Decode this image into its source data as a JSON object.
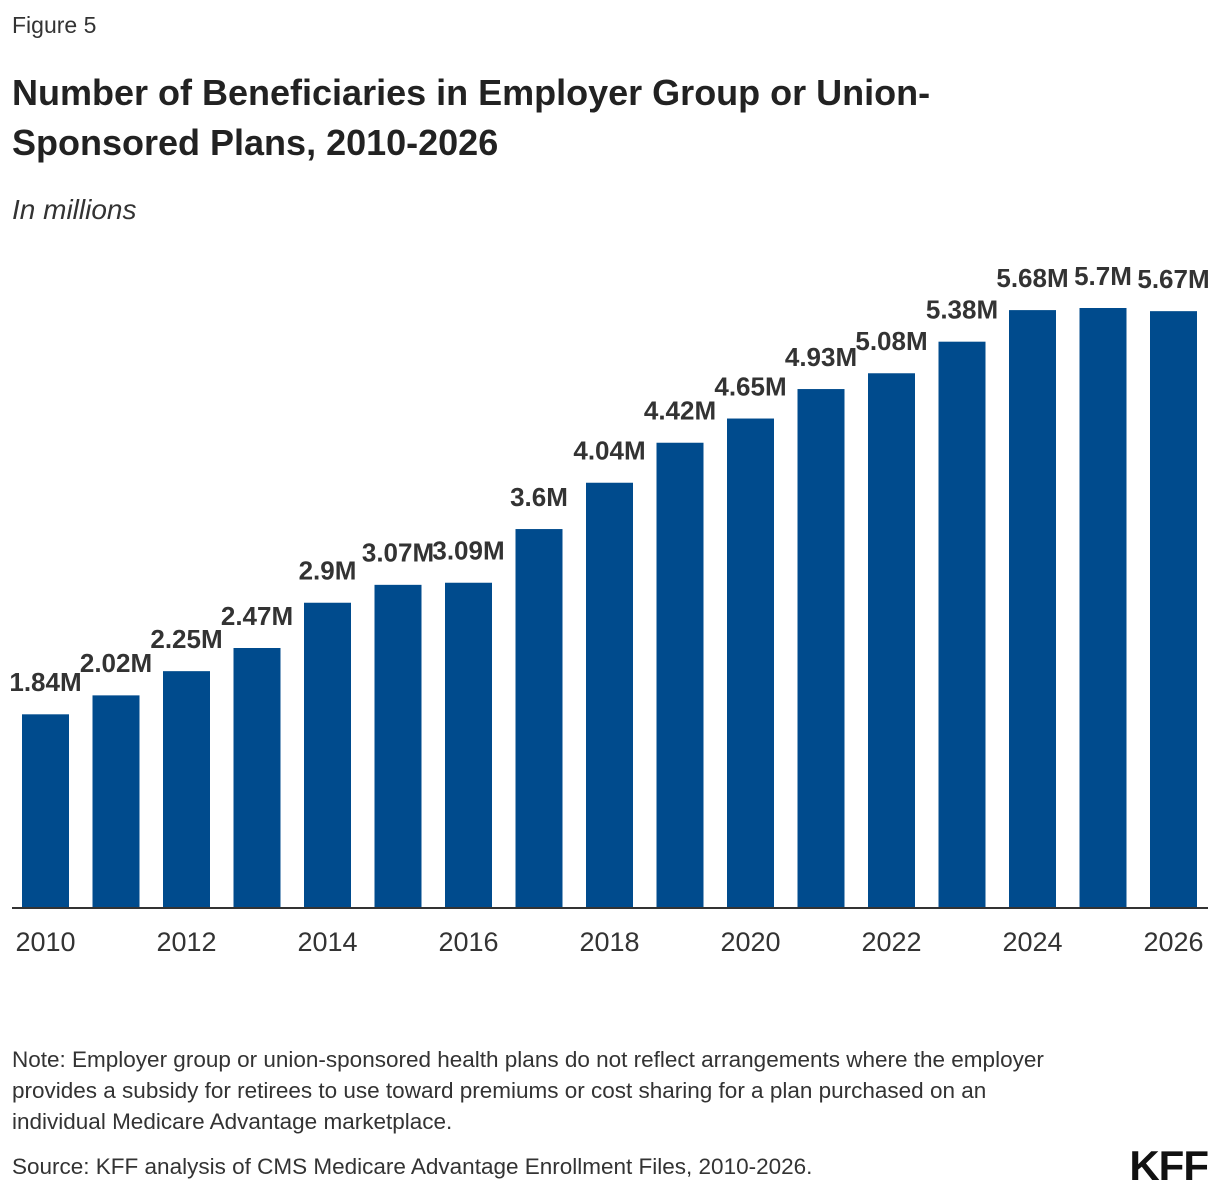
{
  "figure_label": "Figure 5",
  "chart_data": {
    "type": "bar",
    "title": "Number of Beneficiaries in Employer Group or Union-Sponsored Plans, 2010-2026",
    "subtitle": "In millions",
    "categories": [
      "2010",
      null,
      "2012",
      null,
      "2014",
      null,
      "2016",
      null,
      "2018",
      null,
      "2020",
      null,
      "2022",
      null,
      "2024",
      null,
      "2026"
    ],
    "values": [
      1.84,
      2.02,
      2.25,
      2.47,
      2.9,
      3.07,
      3.09,
      3.6,
      4.04,
      4.42,
      4.65,
      4.93,
      5.08,
      5.38,
      5.68,
      5.7,
      5.67
    ],
    "value_labels": [
      "1.84M",
      "2.02M",
      "2.25M",
      "2.47M",
      "2.9M",
      "3.07M",
      "3.09M",
      "3.6M",
      "4.04M",
      "4.42M",
      "4.65M",
      "4.93M",
      "5.08M",
      "5.38M",
      "5.68M",
      "5.7M",
      "5.67M"
    ],
    "color": "#004b8d"
  },
  "note": "Note: Employer group or union-sponsored health plans do not reflect arrangements where the employer provides a subsidy for retirees to use toward premiums or cost sharing for a plan purchased on an individual Medicare Advantage marketplace.",
  "source": "Source: KFF analysis of CMS Medicare Advantage Enrollment Files, 2010-2026.",
  "logo": "KFF"
}
